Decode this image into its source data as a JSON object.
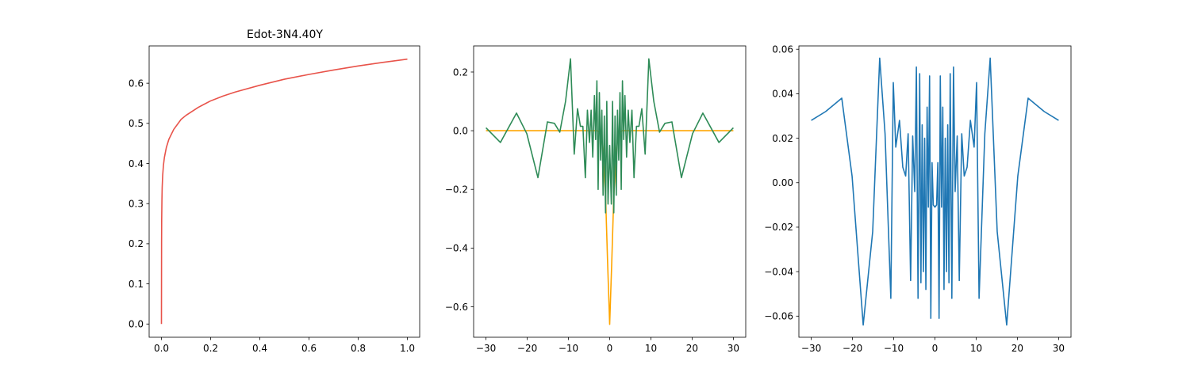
{
  "chart_data": [
    {
      "type": "line",
      "title": "Edot-3N4.40Y",
      "xlabel": "",
      "ylabel": "",
      "xlim": [
        -0.05,
        1.05
      ],
      "ylim": [
        -0.033,
        0.693
      ],
      "xticks": [
        0.0,
        0.2,
        0.4,
        0.6,
        0.8,
        1.0
      ],
      "xtick_labels": [
        "0.0",
        "0.2",
        "0.4",
        "0.6",
        "0.8",
        "1.0"
      ],
      "yticks": [
        0.0,
        0.1,
        0.2,
        0.3,
        0.4,
        0.5,
        0.6
      ],
      "ytick_labels": [
        "0.0",
        "0.1",
        "0.2",
        "0.3",
        "0.4",
        "0.5",
        "0.6"
      ],
      "grid": false,
      "series": [
        {
          "color": "#e8534a",
          "x": [
            0.0,
            0.0005,
            0.001,
            0.002,
            0.003,
            0.005,
            0.008,
            0.012,
            0.02,
            0.03,
            0.05,
            0.08,
            0.1,
            0.15,
            0.2,
            0.25,
            0.3,
            0.4,
            0.5,
            0.6,
            0.7,
            0.8,
            0.9,
            1.0
          ],
          "y": [
            0.0,
            0.2,
            0.26,
            0.31,
            0.34,
            0.37,
            0.395,
            0.415,
            0.44,
            0.46,
            0.485,
            0.51,
            0.52,
            0.54,
            0.556,
            0.568,
            0.578,
            0.595,
            0.61,
            0.622,
            0.633,
            0.643,
            0.652,
            0.66
          ]
        }
      ]
    },
    {
      "type": "line",
      "title": "",
      "xlabel": "",
      "ylabel": "",
      "xlim": [
        -33,
        33
      ],
      "ylim": [
        -0.704,
        0.289
      ],
      "xticks": [
        -30,
        -20,
        -10,
        0,
        10,
        20,
        30
      ],
      "xtick_labels": [
        "−30",
        "−20",
        "−10",
        "0",
        "10",
        "20",
        "30"
      ],
      "yticks": [
        0.2,
        0.0,
        -0.2,
        -0.4,
        -0.6
      ],
      "ytick_labels": [
        "0.2",
        "0.0",
        "−0.2",
        "−0.4",
        "−0.6"
      ],
      "grid": false,
      "series": [
        {
          "color": "#ffa500",
          "x": [
            -30,
            -20,
            -10,
            -6,
            -4,
            -3,
            -2,
            -1.5,
            -1,
            -0.5,
            0,
            0.5,
            1,
            1.5,
            2,
            3,
            4,
            6,
            10,
            20,
            30
          ],
          "y": [
            0.0,
            0.0,
            0.0,
            0.0,
            0.0,
            0.0,
            -0.01,
            -0.1,
            -0.22,
            -0.45,
            -0.66,
            -0.45,
            -0.22,
            -0.1,
            -0.01,
            0.0,
            0.0,
            0.0,
            0.0,
            0.0,
            0.0
          ]
        },
        {
          "color": "#2e8b57",
          "x": [
            -30,
            -26.5,
            -22.6,
            -20.1,
            -17.4,
            -15.1,
            -13.4,
            -12.1,
            -10.7,
            -9.5,
            -8.6,
            -7.8,
            -7.1,
            -6.5,
            -5.9,
            -5.4,
            -4.9,
            -4.5,
            -4.1,
            -3.7,
            -3.4,
            -3.1,
            -2.8,
            -2.5,
            -2.2,
            -1.9,
            -1.6,
            -1.3,
            -1.0,
            -0.7,
            -0.4,
            0.0,
            0.4,
            0.7,
            1.0,
            1.3,
            1.6,
            1.9,
            2.2,
            2.5,
            2.8,
            3.1,
            3.4,
            3.7,
            4.1,
            4.5,
            4.9,
            5.4,
            5.9,
            6.5,
            7.1,
            7.8,
            8.6,
            9.5,
            10.7,
            12.1,
            13.4,
            15.1,
            17.4,
            20.1,
            22.6,
            26.5,
            30
          ],
          "y": [
            0.01,
            -0.04,
            0.06,
            -0.01,
            -0.16,
            0.03,
            0.025,
            -0.005,
            0.1,
            0.245,
            -0.08,
            0.075,
            0.015,
            0.015,
            -0.16,
            0.07,
            -0.04,
            0.07,
            -0.09,
            0.12,
            -0.03,
            0.17,
            -0.2,
            0.13,
            -0.1,
            0.07,
            -0.22,
            0.05,
            -0.28,
            0.1,
            -0.25,
            -0.05,
            -0.25,
            0.1,
            -0.28,
            0.05,
            -0.22,
            0.07,
            -0.1,
            0.13,
            -0.2,
            0.17,
            -0.03,
            0.12,
            -0.09,
            0.07,
            -0.04,
            0.07,
            -0.16,
            0.015,
            0.015,
            0.075,
            -0.08,
            0.245,
            0.1,
            -0.005,
            0.025,
            0.03,
            -0.16,
            -0.01,
            0.06,
            -0.04,
            0.01
          ]
        }
      ]
    },
    {
      "type": "line",
      "title": "",
      "xlabel": "",
      "ylabel": "",
      "xlim": [
        -33,
        33
      ],
      "ylim": [
        -0.0695,
        0.0615
      ],
      "xticks": [
        -30,
        -20,
        -10,
        0,
        10,
        20,
        30
      ],
      "xtick_labels": [
        "−30",
        "−20",
        "−10",
        "0",
        "10",
        "20",
        "30"
      ],
      "yticks": [
        0.06,
        0.04,
        0.02,
        0.0,
        -0.02,
        -0.04,
        -0.06
      ],
      "ytick_labels": [
        "0.06",
        "0.04",
        "0.02",
        "0.00",
        "−0.02",
        "−0.04",
        "−0.06"
      ],
      "grid": false,
      "series": [
        {
          "color": "#1f77b4",
          "x": [
            -30,
            -26.5,
            -22.6,
            -20.1,
            -17.4,
            -15.1,
            -13.4,
            -12.1,
            -10.7,
            -10.1,
            -9.5,
            -8.6,
            -7.8,
            -7.1,
            -6.5,
            -5.9,
            -5.4,
            -4.9,
            -4.5,
            -4.1,
            -3.7,
            -3.4,
            -3.1,
            -2.8,
            -2.5,
            -2.2,
            -1.9,
            -1.6,
            -1.3,
            -1.0,
            -0.7,
            -0.4,
            0.0,
            0.4,
            0.7,
            1.0,
            1.3,
            1.6,
            1.9,
            2.2,
            2.5,
            2.8,
            3.1,
            3.4,
            3.7,
            4.1,
            4.5,
            4.9,
            5.4,
            5.9,
            6.5,
            7.1,
            7.8,
            8.6,
            9.5,
            10.1,
            10.7,
            12.1,
            13.4,
            15.1,
            17.4,
            20.1,
            22.6,
            26.5,
            30
          ],
          "y": [
            0.028,
            0.032,
            0.038,
            0.003,
            -0.064,
            -0.022,
            0.056,
            0.022,
            -0.052,
            0.045,
            0.016,
            0.028,
            0.007,
            0.003,
            0.022,
            -0.044,
            0.021,
            -0.004,
            0.052,
            -0.052,
            0.049,
            -0.045,
            0.026,
            -0.04,
            0.02,
            -0.048,
            0.034,
            -0.011,
            0.048,
            -0.061,
            0.009,
            -0.01,
            -0.011,
            -0.01,
            0.009,
            -0.061,
            0.048,
            -0.011,
            0.034,
            -0.048,
            0.02,
            -0.04,
            0.026,
            -0.045,
            0.049,
            -0.052,
            0.052,
            -0.004,
            0.021,
            -0.044,
            0.022,
            0.003,
            0.007,
            0.028,
            0.016,
            0.045,
            -0.052,
            0.022,
            0.056,
            -0.022,
            -0.064,
            0.003,
            0.038,
            0.032,
            0.028
          ]
        }
      ]
    }
  ]
}
